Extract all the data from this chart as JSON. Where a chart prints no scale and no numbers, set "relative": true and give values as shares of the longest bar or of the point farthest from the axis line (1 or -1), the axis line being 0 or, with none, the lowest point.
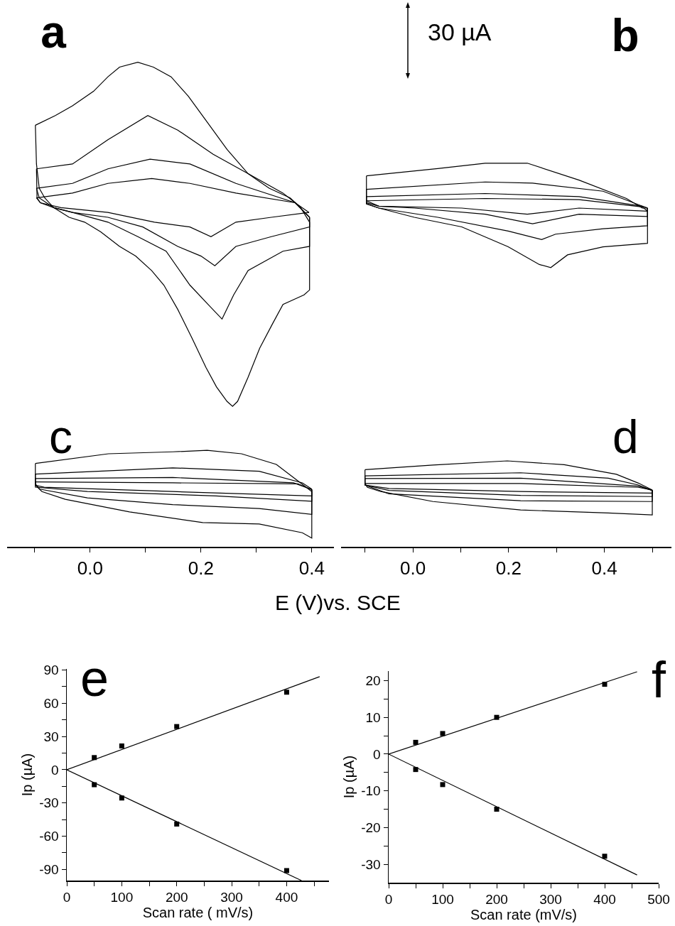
{
  "chart_data": [
    {
      "type": "line",
      "title": "a",
      "xlabel": "E (V)vs. SCE",
      "annotations": [
        "c"
      ],
      "relative": true,
      "xlim": [
        -0.15,
        0.44
      ],
      "tick_labels": "x",
      "xticks": [
        {
          "value": -0.1,
          "label": null
        },
        {
          "value": 0,
          "label": "0.0"
        },
        {
          "value": 0.1,
          "label": null
        },
        0.2,
        {
          "value": 0.3,
          "label": null
        },
        0.4
      ],
      "series": [
        {
          "color": "#000000",
          "x": [
            -0.099,
            -0.063,
            -0.032,
            0.006,
            0.032,
            0.053,
            0.086,
            0.114,
            0.146,
            0.177,
            0.209,
            0.247,
            0.285,
            0.323,
            0.361,
            0.38,
            0.396
          ],
          "values": [
            0.87,
            0.89,
            0.91,
            0.94,
            0.97,
            0.99,
            1.0,
            0.99,
            0.97,
            0.93,
            0.88,
            0.82,
            0.77,
            0.74,
            0.72,
            0.7,
            0.67
          ]
        },
        {
          "color": "#000000",
          "x": [
            0.396,
            0.396,
            0.386,
            0.367,
            0.348,
            0.329,
            0.306,
            0.285,
            0.266,
            0.257,
            0.247,
            0.228,
            0.209,
            0.184,
            0.158,
            0.133,
            0.111,
            0.082,
            0.053,
            0.019,
            -0.01,
            -0.038,
            -0.066,
            -0.082,
            -0.092,
            -0.097,
            -0.099
          ],
          "values": [
            0.67,
            0.53,
            0.52,
            0.51,
            0.5,
            0.46,
            0.41,
            0.35,
            0.3,
            0.29,
            0.3,
            0.33,
            0.37,
            0.43,
            0.49,
            0.54,
            0.57,
            0.6,
            0.62,
            0.65,
            0.67,
            0.68,
            0.7,
            0.72,
            0.74,
            0.79,
            0.87
          ]
        },
        {
          "color": "#000000",
          "x": [
            -0.097,
            -0.032,
            0.032,
            0.104,
            0.158,
            0.222,
            0.285,
            0.348,
            0.37,
            0.396
          ],
          "values": [
            0.78,
            0.79,
            0.84,
            0.89,
            0.86,
            0.81,
            0.77,
            0.73,
            0.71,
            0.68
          ]
        },
        {
          "color": "#000000",
          "x": [
            0.396,
            0.396,
            0.348,
            0.285,
            0.259,
            0.238,
            0.213,
            0.18,
            0.137,
            0.086,
            0.032,
            -0.032,
            -0.066,
            -0.09,
            -0.096,
            -0.097
          ],
          "values": [
            0.68,
            0.62,
            0.61,
            0.57,
            0.52,
            0.47,
            0.5,
            0.54,
            0.61,
            0.64,
            0.67,
            0.69,
            0.7,
            0.71,
            0.72,
            0.78
          ]
        },
        {
          "color": "#000000",
          "x": [
            -0.097,
            -0.032,
            0.032,
            0.108,
            0.18,
            0.263,
            0.37,
            0.396
          ],
          "values": [
            0.74,
            0.75,
            0.78,
            0.8,
            0.79,
            0.75,
            0.71,
            0.68
          ]
        },
        {
          "color": "#000000",
          "x": [
            0.396,
            0.396,
            0.327,
            0.263,
            0.225,
            0.2,
            0.158,
            0.095,
            0.032,
            -0.032,
            -0.066,
            -0.092,
            -0.097
          ],
          "values": [
            0.68,
            0.66,
            0.64,
            0.62,
            0.58,
            0.6,
            0.62,
            0.66,
            0.68,
            0.69,
            0.7,
            0.72,
            0.74
          ]
        },
        {
          "color": "#000000",
          "x": [
            -0.097,
            -0.032,
            0.032,
            0.111,
            0.18,
            0.263,
            0.37,
            0.395
          ],
          "values": [
            0.72,
            0.73,
            0.75,
            0.76,
            0.75,
            0.73,
            0.71,
            0.69
          ]
        },
        {
          "color": "#000000",
          "x": [
            0.395,
            0.327,
            0.263,
            0.218,
            0.18,
            0.116,
            0.032,
            -0.053,
            -0.09,
            -0.097
          ],
          "values": [
            0.69,
            0.68,
            0.67,
            0.64,
            0.66,
            0.67,
            0.69,
            0.7,
            0.71,
            0.72
          ]
        },
        {
          "color": "#000000",
          "x": [
            -0.099,
            0.033,
            0.149,
            0.211,
            0.273,
            0.336,
            0.375,
            0.4
          ],
          "values": [
            0.172,
            0.192,
            0.196,
            0.199,
            0.192,
            0.17,
            0.136,
            0.114
          ]
        },
        {
          "color": "#000000",
          "x": [
            0.4,
            0.4,
            0.383,
            0.305,
            0.203,
            0.071,
            -0.045,
            -0.087,
            -0.099,
            -0.099
          ],
          "values": [
            0.114,
            0.018,
            0.029,
            0.047,
            0.05,
            0.072,
            0.098,
            0.114,
            0.127,
            0.172
          ]
        },
        {
          "color": "#000000",
          "x": [
            -0.099,
            0.149,
            0.305,
            0.383,
            0.4
          ],
          "values": [
            0.15,
            0.163,
            0.156,
            0.132,
            0.119
          ]
        },
        {
          "color": "#000000",
          "x": [
            0.4,
            0.4,
            0.305,
            0.149,
            -0.005,
            -0.091,
            -0.099,
            -0.099
          ],
          "values": [
            0.119,
            0.067,
            0.079,
            0.087,
            0.101,
            0.119,
            0.13,
            0.15
          ]
        },
        {
          "color": "#000000",
          "x": [
            -0.099,
            0.149,
            0.367,
            0.4
          ],
          "values": [
            0.141,
            0.143,
            0.132,
            0.118
          ]
        },
        {
          "color": "#000000",
          "x": [
            0.4,
            0.4,
            0.227,
            -0.005,
            -0.099,
            -0.099
          ],
          "values": [
            0.118,
            0.094,
            0.105,
            0.114,
            0.123,
            0.141
          ]
        },
        {
          "color": "#000000",
          "x": [
            -0.099,
            0.149,
            0.375,
            0.4
          ],
          "values": [
            0.134,
            0.132,
            0.13,
            0.118
          ]
        },
        {
          "color": "#000000",
          "x": [
            0.4,
            0.4,
            0.149,
            -0.083,
            -0.099,
            -0.099
          ],
          "values": [
            0.118,
            0.105,
            0.114,
            0.123,
            0.127,
            0.134
          ]
        }
      ]
    },
    {
      "type": "line",
      "title": "b",
      "annotations": [
        "30 µA",
        "d"
      ],
      "relative": true,
      "xlim": [
        -0.15,
        0.54
      ],
      "tick_labels": "x",
      "xticks": [
        {
          "value": -0.1,
          "label": null
        },
        {
          "value": 0,
          "label": "0.0"
        },
        {
          "value": 0.1,
          "label": null
        },
        0.2,
        {
          "value": 0.3,
          "label": null
        },
        0.4,
        {
          "value": 0.5,
          "label": null
        }
      ],
      "series": [
        {
          "color": "#000000",
          "x": [
            -0.097,
            0.052,
            0.151,
            0.239,
            0.347,
            0.446,
            0.479,
            0.49
          ],
          "values": [
            0.967,
            0.986,
            1.0,
            1.0,
            0.956,
            0.908,
            0.883,
            0.883
          ]
        },
        {
          "color": "#000000",
          "x": [
            0.49,
            0.49,
            0.397,
            0.323,
            0.288,
            0.264,
            0.199,
            0.102,
            0.003,
            -0.071,
            -0.097,
            -0.097
          ],
          "values": [
            0.883,
            0.791,
            0.782,
            0.761,
            0.728,
            0.736,
            0.782,
            0.834,
            0.859,
            0.883,
            0.894,
            0.967
          ]
        },
        {
          "color": "#000000",
          "x": [
            -0.097,
            0.151,
            0.25,
            0.397,
            0.479,
            0.49
          ],
          "values": [
            0.932,
            0.951,
            0.948,
            0.927,
            0.888,
            0.883
          ]
        },
        {
          "color": "#000000",
          "x": [
            0.49,
            0.49,
            0.397,
            0.298,
            0.269,
            0.199,
            0.052,
            -0.071,
            -0.097,
            -0.097
          ],
          "values": [
            0.883,
            0.837,
            0.829,
            0.815,
            0.801,
            0.823,
            0.859,
            0.883,
            0.894,
            0.932
          ]
        },
        {
          "color": "#000000",
          "x": [
            -0.097,
            0.151,
            0.347,
            0.479,
            0.49
          ],
          "values": [
            0.913,
            0.921,
            0.913,
            0.888,
            0.883
          ]
        },
        {
          "color": "#000000",
          "x": [
            0.49,
            0.49,
            0.347,
            0.25,
            0.151,
            0.003,
            -0.071,
            -0.097,
            -0.097
          ],
          "values": [
            0.883,
            0.861,
            0.867,
            0.842,
            0.867,
            0.883,
            0.888,
            0.897,
            0.913
          ]
        },
        {
          "color": "#000000",
          "x": [
            -0.097,
            0.151,
            0.347,
            0.479,
            0.49
          ],
          "values": [
            0.902,
            0.908,
            0.905,
            0.886,
            0.875
          ]
        },
        {
          "color": "#000000",
          "x": [
            0.49,
            0.347,
            0.239,
            0.102,
            -0.071,
            -0.097
          ],
          "values": [
            0.875,
            0.883,
            0.867,
            0.883,
            0.888,
            0.902
          ]
        },
        {
          "color": "#000000",
          "x": [
            -0.1,
            0.042,
            0.197,
            0.316,
            0.425,
            0.471,
            0.5
          ],
          "values": [
            0.201,
            0.213,
            0.224,
            0.214,
            0.189,
            0.166,
            0.148
          ]
        },
        {
          "color": "#000000",
          "x": [
            0.5,
            0.5,
            0.408,
            0.225,
            0.042,
            -0.067,
            -0.095,
            -0.1,
            -0.1
          ],
          "values": [
            0.148,
            0.083,
            0.088,
            0.096,
            0.118,
            0.144,
            0.155,
            0.165,
            0.201
          ]
        },
        {
          "color": "#000000",
          "x": [
            -0.1,
            0.225,
            0.408,
            0.471,
            0.5
          ],
          "values": [
            0.185,
            0.193,
            0.179,
            0.161,
            0.147
          ]
        },
        {
          "color": "#000000",
          "x": [
            0.5,
            0.5,
            0.225,
            -0.05,
            -0.1,
            -0.1
          ],
          "values": [
            0.147,
            0.118,
            0.12,
            0.138,
            0.161,
            0.185
          ]
        },
        {
          "color": "#000000",
          "x": [
            -0.1,
            0.225,
            0.471,
            0.5
          ],
          "values": [
            0.178,
            0.179,
            0.158,
            0.147
          ]
        },
        {
          "color": "#000000",
          "x": [
            0.5,
            0.5,
            0.225,
            -0.05,
            -0.1,
            -0.1
          ],
          "values": [
            0.147,
            0.131,
            0.134,
            0.147,
            0.161,
            0.178
          ]
        },
        {
          "color": "#000000",
          "x": [
            -0.1,
            0.225,
            0.471,
            0.5
          ],
          "values": [
            0.165,
            0.165,
            0.155,
            0.148
          ]
        },
        {
          "color": "#000000",
          "x": [
            0.5,
            0.5,
            0.225,
            -0.05,
            -0.1,
            -0.1
          ],
          "values": [
            0.148,
            0.14,
            0.144,
            0.152,
            0.161,
            0.165
          ]
        }
      ]
    },
    {
      "type": "scatter",
      "title": "e",
      "xlabel": "Scan rate ( mV/s)",
      "ylabel": "Ip (µA)",
      "xlim": [
        0,
        477
      ],
      "ylim": [
        -100,
        91
      ],
      "xticks": [
        0,
        {
          "value": 50,
          "label": null
        },
        100,
        {
          "value": 150,
          "label": null
        },
        200,
        {
          "value": 250,
          "label": null
        },
        300,
        {
          "value": 350,
          "label": null
        },
        400,
        {
          "value": 450,
          "label": null
        }
      ],
      "yticks": [
        -90,
        {
          "value": -75,
          "label": null
        },
        -60,
        {
          "value": -45,
          "label": null
        },
        -30,
        {
          "value": -15,
          "label": null
        },
        0,
        {
          "value": 15,
          "label": null
        },
        30,
        {
          "value": 45,
          "label": null
        },
        60,
        {
          "value": 75,
          "label": null
        },
        90
      ],
      "series": [
        {
          "color": "#000000",
          "marker": "square",
          "x": [
            50,
            100,
            200,
            400
          ],
          "values": [
            11,
            21.5,
            39,
            70
          ]
        },
        {
          "color": "#000000",
          "marker": "square",
          "x": [
            50,
            100,
            200,
            400
          ],
          "values": [
            -13.5,
            -25.5,
            -49,
            -91
          ]
        },
        {
          "type": "line",
          "color": "#000000",
          "x": [
            0,
            460
          ],
          "values": [
            0,
            84
          ]
        },
        {
          "type": "line",
          "color": "#000000",
          "x": [
            0,
            427
          ],
          "values": [
            0,
            -100
          ]
        }
      ]
    },
    {
      "type": "scatter",
      "title": "f",
      "xlabel": "Scan rate (mV/s)",
      "ylabel": "Ip (µA)",
      "xlim": [
        0,
        500
      ],
      "ylim": [
        -35,
        22.6
      ],
      "xticks": [
        0,
        {
          "value": 50,
          "label": null
        },
        100,
        {
          "value": 150,
          "label": null
        },
        200,
        {
          "value": 250,
          "label": null
        },
        300,
        {
          "value": 350,
          "label": null
        },
        400,
        {
          "value": 450,
          "label": null
        },
        500
      ],
      "yticks": [
        -30,
        {
          "value": -25,
          "label": null
        },
        -20,
        {
          "value": -15,
          "label": null
        },
        -10,
        {
          "value": -5,
          "label": null
        },
        0,
        {
          "value": 5,
          "label": null
        },
        10,
        {
          "value": 15,
          "label": null
        },
        20
      ],
      "series": [
        {
          "color": "#000000",
          "marker": "square",
          "x": [
            50,
            100,
            200,
            400
          ],
          "values": [
            3.2,
            5.6,
            10,
            19
          ]
        },
        {
          "color": "#000000",
          "marker": "square",
          "x": [
            50,
            100,
            200,
            400
          ],
          "values": [
            -4.2,
            -8.3,
            -15,
            -27.8
          ]
        },
        {
          "type": "line",
          "color": "#000000",
          "x": [
            0,
            460
          ],
          "values": [
            0,
            22.4
          ]
        },
        {
          "type": "line",
          "color": "#000000",
          "x": [
            0,
            460
          ],
          "values": [
            0,
            -32.9
          ]
        }
      ]
    }
  ]
}
